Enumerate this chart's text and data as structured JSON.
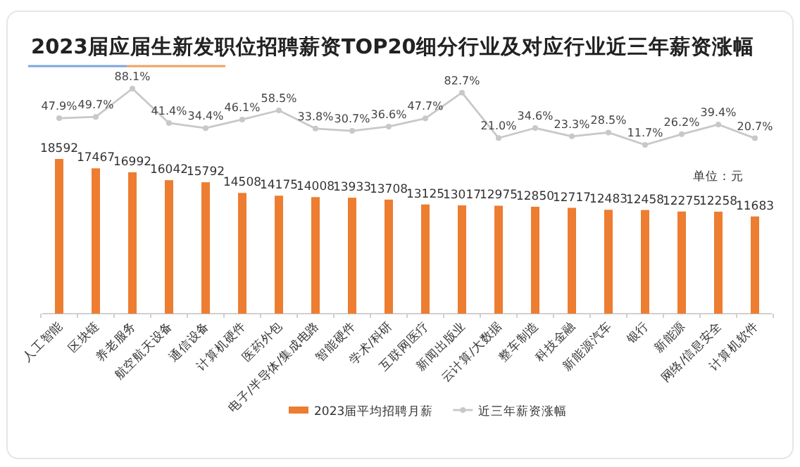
{
  "chart_data": [
    {
      "type": "line",
      "title": "2023届应届生新发职位招聘薪资TOP20细分行业及对应行业近三年薪资涨幅",
      "categories": [
        null,
        null,
        null,
        null,
        null,
        null,
        null,
        null,
        null,
        null,
        null,
        null,
        null,
        null,
        null,
        null,
        null,
        null,
        null,
        null
      ],
      "series": [
        {
          "name": "近三年薪资涨幅",
          "color": "#c8c8c8",
          "values": [
            47.9,
            49.7,
            88.1,
            41.4,
            34.4,
            46.1,
            58.5,
            33.8,
            30.7,
            36.6,
            47.7,
            82.7,
            21.0,
            34.6,
            23.3,
            28.5,
            11.7,
            26.2,
            39.4,
            20.7
          ],
          "value_labels": [
            "47.9%",
            "49.7%",
            "88.1%",
            "41.4%",
            "34.4%",
            "46.1%",
            "58.5%",
            "33.8%",
            "30.7%",
            "36.6%",
            "47.7%",
            "82.7%",
            "21.0%",
            "34.6%",
            "23.3%",
            "28.5%",
            "11.7%",
            "26.2%",
            "39.4%",
            "20.7%"
          ]
        }
      ],
      "marker": "circle",
      "legend": "bottom"
    },
    {
      "type": "bar",
      "categories": [
        "人工智能",
        "区块链",
        "养老服务",
        "航空航天设备",
        "通信设备",
        "计算机硬件",
        "医药外包",
        "电子/半导体/集成电路",
        "智能硬件",
        "学术/科研",
        "互联网医疗",
        "新闻出版业",
        "云计算/大数据",
        "整车制造",
        "科技金融",
        "新能源汽车",
        "银行",
        "新能源",
        "网络/信息安全",
        "计算机软件"
      ],
      "series": [
        {
          "name": "2023届平均招聘月薪",
          "color": "#ed7d31",
          "values": [
            18592,
            17467,
            16992,
            16042,
            15792,
            14508,
            14175,
            14008,
            13933,
            13708,
            13125,
            13017,
            12975,
            12850,
            12717,
            12483,
            12458,
            12275,
            12258,
            11683
          ]
        }
      ],
      "ylim": [
        0,
        18592
      ],
      "data_labels": true,
      "legend": "bottom",
      "annotations": [
        "单位：元"
      ]
    }
  ]
}
